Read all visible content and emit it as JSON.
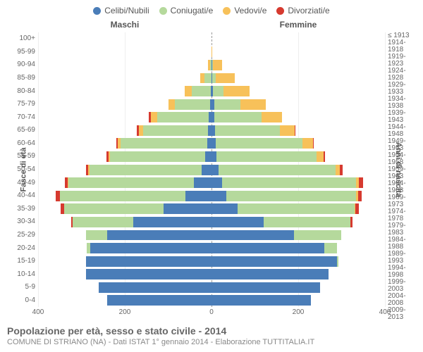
{
  "legend": [
    {
      "label": "Celibi/Nubili",
      "color": "#4a7db8"
    },
    {
      "label": "Coniugati/e",
      "color": "#b5d99c"
    },
    {
      "label": "Vedovi/e",
      "color": "#f7c15a"
    },
    {
      "label": "Divorziati/e",
      "color": "#d63a2f"
    }
  ],
  "headers": {
    "male": "Maschi",
    "female": "Femmine"
  },
  "axis_titles": {
    "left": "Fasce di età",
    "right": "Anni di nascita"
  },
  "xaxis": {
    "max": 400,
    "ticks": [
      400,
      200,
      0,
      200,
      400
    ]
  },
  "caption": {
    "title": "Popolazione per età, sesso e stato civile - 2014",
    "sub": "COMUNE DI STRIANO (NA) - Dati ISTAT 1° gennaio 2014 - Elaborazione TUTTITALIA.IT"
  },
  "colors": {
    "celibi": "#4a7db8",
    "coniugati": "#b5d99c",
    "vedovi": "#f7c15a",
    "divorziati": "#d63a2f",
    "grid": "#eeeeee",
    "centerline": "#999999",
    "bg": "#ffffff"
  },
  "rows": [
    {
      "age": "100+",
      "birth": "≤ 1913",
      "m": {
        "c": 0,
        "co": 0,
        "v": 0,
        "d": 0
      },
      "f": {
        "c": 0,
        "co": 0,
        "v": 0,
        "d": 0
      }
    },
    {
      "age": "95-99",
      "birth": "1914-1918",
      "m": {
        "c": 0,
        "co": 0,
        "v": 0,
        "d": 0
      },
      "f": {
        "c": 0,
        "co": 0,
        "v": 2,
        "d": 0
      }
    },
    {
      "age": "90-94",
      "birth": "1919-1923",
      "m": {
        "c": 0,
        "co": 4,
        "v": 4,
        "d": 0
      },
      "f": {
        "c": 2,
        "co": 2,
        "v": 20,
        "d": 0
      }
    },
    {
      "age": "85-89",
      "birth": "1924-1928",
      "m": {
        "c": 0,
        "co": 16,
        "v": 10,
        "d": 0
      },
      "f": {
        "c": 2,
        "co": 8,
        "v": 44,
        "d": 0
      }
    },
    {
      "age": "80-84",
      "birth": "1929-1933",
      "m": {
        "c": 2,
        "co": 44,
        "v": 16,
        "d": 0
      },
      "f": {
        "c": 4,
        "co": 24,
        "v": 60,
        "d": 0
      }
    },
    {
      "age": "75-79",
      "birth": "1934-1938",
      "m": {
        "c": 4,
        "co": 80,
        "v": 16,
        "d": 0
      },
      "f": {
        "c": 6,
        "co": 60,
        "v": 60,
        "d": 0
      }
    },
    {
      "age": "70-74",
      "birth": "1939-1943",
      "m": {
        "c": 6,
        "co": 120,
        "v": 14,
        "d": 4
      },
      "f": {
        "c": 6,
        "co": 110,
        "v": 46,
        "d": 0
      }
    },
    {
      "age": "65-69",
      "birth": "1944-1948",
      "m": {
        "c": 8,
        "co": 150,
        "v": 10,
        "d": 4
      },
      "f": {
        "c": 8,
        "co": 150,
        "v": 34,
        "d": 2
      }
    },
    {
      "age": "60-64",
      "birth": "1949-1953",
      "m": {
        "c": 10,
        "co": 200,
        "v": 6,
        "d": 4
      },
      "f": {
        "c": 10,
        "co": 200,
        "v": 24,
        "d": 2
      }
    },
    {
      "age": "55-59",
      "birth": "1954-1958",
      "m": {
        "c": 14,
        "co": 220,
        "v": 4,
        "d": 4
      },
      "f": {
        "c": 12,
        "co": 230,
        "v": 16,
        "d": 4
      }
    },
    {
      "age": "50-54",
      "birth": "1959-1963",
      "m": {
        "c": 22,
        "co": 260,
        "v": 2,
        "d": 6
      },
      "f": {
        "c": 16,
        "co": 270,
        "v": 10,
        "d": 6
      }
    },
    {
      "age": "45-49",
      "birth": "1964-1968",
      "m": {
        "c": 40,
        "co": 290,
        "v": 2,
        "d": 6
      },
      "f": {
        "c": 24,
        "co": 310,
        "v": 6,
        "d": 10
      }
    },
    {
      "age": "40-44",
      "birth": "1969-1973",
      "m": {
        "c": 60,
        "co": 290,
        "v": 0,
        "d": 10
      },
      "f": {
        "c": 34,
        "co": 300,
        "v": 4,
        "d": 8
      }
    },
    {
      "age": "35-39",
      "birth": "1974-1978",
      "m": {
        "c": 110,
        "co": 230,
        "v": 0,
        "d": 8
      },
      "f": {
        "c": 60,
        "co": 270,
        "v": 2,
        "d": 8
      }
    },
    {
      "age": "30-34",
      "birth": "1979-1983",
      "m": {
        "c": 180,
        "co": 140,
        "v": 0,
        "d": 4
      },
      "f": {
        "c": 120,
        "co": 200,
        "v": 0,
        "d": 6
      }
    },
    {
      "age": "25-29",
      "birth": "1984-1988",
      "m": {
        "c": 240,
        "co": 50,
        "v": 0,
        "d": 0
      },
      "f": {
        "c": 190,
        "co": 110,
        "v": 0,
        "d": 0
      }
    },
    {
      "age": "20-24",
      "birth": "1989-1993",
      "m": {
        "c": 280,
        "co": 8,
        "v": 0,
        "d": 0
      },
      "f": {
        "c": 260,
        "co": 30,
        "v": 0,
        "d": 0
      }
    },
    {
      "age": "15-19",
      "birth": "1994-1998",
      "m": {
        "c": 290,
        "co": 0,
        "v": 0,
        "d": 0
      },
      "f": {
        "c": 290,
        "co": 2,
        "v": 0,
        "d": 0
      }
    },
    {
      "age": "10-14",
      "birth": "1999-2003",
      "m": {
        "c": 290,
        "co": 0,
        "v": 0,
        "d": 0
      },
      "f": {
        "c": 270,
        "co": 0,
        "v": 0,
        "d": 0
      }
    },
    {
      "age": "5-9",
      "birth": "2004-2008",
      "m": {
        "c": 260,
        "co": 0,
        "v": 0,
        "d": 0
      },
      "f": {
        "c": 250,
        "co": 0,
        "v": 0,
        "d": 0
      }
    },
    {
      "age": "0-4",
      "birth": "2009-2013",
      "m": {
        "c": 240,
        "co": 0,
        "v": 0,
        "d": 0
      },
      "f": {
        "c": 230,
        "co": 0,
        "v": 0,
        "d": 0
      }
    }
  ]
}
